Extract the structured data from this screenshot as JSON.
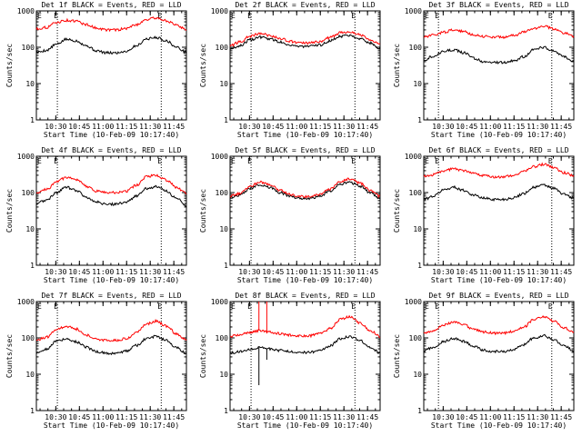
{
  "colors": {
    "events": "#000000",
    "lld": "#ff0000",
    "frame": "#000000",
    "background": "#ffffff"
  },
  "chart_data": [
    {
      "type": "line",
      "title": "Det 1f BLACK = Events, RED = LLD",
      "xlabel": "Start Time (10-Feb-09 10:17:40)",
      "ylabel": "Counts/sec",
      "yscale": "log",
      "ylim": [
        1,
        1000
      ],
      "x_ticks": [
        "10:30",
        "10:45",
        "11:00",
        "11:15",
        "11:30",
        "11:45"
      ],
      "y_ticks": [
        "1",
        "10",
        "100",
        "1000"
      ],
      "marker_x": [
        "10:31",
        "11:37"
      ],
      "marker_labels": [
        "E",
        "E"
      ],
      "series": [
        {
          "color": "#000000",
          "values": [
            72,
            82,
            120,
            165,
            150,
            110,
            80,
            70,
            70,
            78,
            110,
            170,
            185,
            150,
            100,
            72
          ]
        },
        {
          "color": "#ff0000",
          "values": [
            320,
            350,
            480,
            550,
            520,
            420,
            340,
            300,
            300,
            330,
            420,
            580,
            640,
            540,
            400,
            310
          ]
        }
      ]
    },
    {
      "type": "line",
      "title": "Det 2f BLACK = Events, RED = LLD",
      "xlabel": "Start Time (10-Feb-09 10:17:40)",
      "ylabel": "Counts/sec",
      "yscale": "log",
      "ylim": [
        1,
        1000
      ],
      "x_ticks": [
        "10:30",
        "10:45",
        "11:00",
        "11:15",
        "11:30",
        "11:45"
      ],
      "y_ticks": [
        "1",
        "10",
        "100",
        "1000"
      ],
      "marker_x": [
        "10:31",
        "11:37"
      ],
      "marker_labels": [
        "E",
        "E"
      ],
      "series": [
        {
          "color": "#000000",
          "values": [
            90,
            110,
            160,
            190,
            170,
            140,
            115,
            105,
            105,
            115,
            150,
            200,
            215,
            175,
            130,
            95
          ]
        },
        {
          "color": "#ff0000",
          "values": [
            110,
            140,
            200,
            240,
            210,
            175,
            145,
            130,
            130,
            145,
            185,
            250,
            270,
            220,
            165,
            120
          ]
        }
      ]
    },
    {
      "type": "line",
      "title": "Det 3f BLACK = Events, RED = LLD",
      "xlabel": "Start Time (10-Feb-09 10:17:40)",
      "ylabel": "Counts/sec",
      "yscale": "log",
      "ylim": [
        1,
        1000
      ],
      "x_ticks": [
        "10:30",
        "10:45",
        "11:00",
        "11:15",
        "11:30",
        "11:45"
      ],
      "y_ticks": [
        "1",
        "10",
        "100",
        "1000"
      ],
      "marker_x": [
        "10:27",
        "11:39"
      ],
      "marker_labels": [
        "E",
        "E"
      ],
      "series": [
        {
          "color": "#000000",
          "values": [
            45,
            58,
            78,
            85,
            70,
            50,
            40,
            38,
            38,
            42,
            55,
            85,
            100,
            80,
            55,
            42
          ]
        },
        {
          "color": "#ff0000",
          "values": [
            190,
            215,
            260,
            300,
            270,
            220,
            200,
            190,
            190,
            210,
            260,
            330,
            380,
            320,
            250,
            200
          ]
        }
      ]
    },
    {
      "type": "line",
      "title": "Det 4f BLACK = Events, RED = LLD",
      "xlabel": "Start Time (10-Feb-09 10:17:40)",
      "ylabel": "Counts/sec",
      "yscale": "log",
      "ylim": [
        1,
        1000
      ],
      "x_ticks": [
        "10:30",
        "10:45",
        "11:00",
        "11:15",
        "11:30",
        "11:45"
      ],
      "y_ticks": [
        "1",
        "10",
        "100",
        "1000"
      ],
      "marker_x": [
        "10:31",
        "11:37"
      ],
      "marker_labels": [
        "E",
        "E"
      ],
      "series": [
        {
          "color": "#000000",
          "values": [
            50,
            62,
            100,
            140,
            115,
            75,
            55,
            48,
            48,
            55,
            80,
            130,
            145,
            110,
            70,
            45
          ]
        },
        {
          "color": "#ff0000",
          "values": [
            100,
            120,
            200,
            260,
            220,
            150,
            110,
            100,
            100,
            110,
            160,
            270,
            300,
            220,
            140,
            95
          ]
        }
      ]
    },
    {
      "type": "line",
      "title": "Det 5f BLACK = Events, RED = LLD",
      "xlabel": "Start Time (10-Feb-09 10:17:40)",
      "ylabel": "Counts/sec",
      "yscale": "log",
      "ylim": [
        1,
        1000
      ],
      "x_ticks": [
        "10:30",
        "10:45",
        "11:00",
        "11:15",
        "11:30",
        "11:45"
      ],
      "y_ticks": [
        "1",
        "10",
        "100",
        "1000"
      ],
      "marker_x": [
        "10:31",
        "11:37"
      ],
      "marker_labels": [
        "E",
        "E"
      ],
      "series": [
        {
          "color": "#000000",
          "values": [
            72,
            85,
            130,
            165,
            140,
            100,
            78,
            70,
            70,
            80,
            110,
            170,
            190,
            150,
            100,
            70
          ]
        },
        {
          "color": "#ff0000",
          "values": [
            80,
            95,
            150,
            195,
            165,
            115,
            88,
            78,
            78,
            90,
            125,
            200,
            240,
            180,
            115,
            78
          ]
        }
      ]
    },
    {
      "type": "line",
      "title": "Det 6f BLACK = Events, RED = LLD",
      "xlabel": "Start Time (10-Feb-09 10:17:40)",
      "ylabel": "Counts/sec",
      "yscale": "log",
      "ylim": [
        1,
        1000
      ],
      "x_ticks": [
        "10:30",
        "10:45",
        "11:00",
        "11:15",
        "11:30",
        "11:45"
      ],
      "y_ticks": [
        "1",
        "10",
        "100",
        "1000"
      ],
      "marker_x": [
        "10:27",
        "11:39"
      ],
      "marker_labels": [
        "E",
        "E"
      ],
      "series": [
        {
          "color": "#000000",
          "values": [
            65,
            80,
            120,
            140,
            115,
            85,
            70,
            65,
            65,
            72,
            95,
            140,
            160,
            130,
            90,
            70
          ]
        },
        {
          "color": "#ff0000",
          "values": [
            280,
            310,
            400,
            450,
            400,
            330,
            290,
            270,
            270,
            300,
            380,
            520,
            600,
            480,
            350,
            290
          ]
        }
      ]
    },
    {
      "type": "line",
      "title": "Det 7f BLACK = Events, RED = LLD",
      "xlabel": "Start Time (10-Feb-09 10:17:40)",
      "ylabel": "Counts/sec",
      "yscale": "log",
      "ylim": [
        1,
        1000
      ],
      "x_ticks": [
        "10:30",
        "10:45",
        "11:00",
        "11:15",
        "11:30",
        "11:45"
      ],
      "y_ticks": [
        "1",
        "10",
        "100",
        "1000"
      ],
      "marker_x": [
        "10:31",
        "11:37"
      ],
      "marker_labels": [
        "E",
        "E"
      ],
      "series": [
        {
          "color": "#000000",
          "values": [
            38,
            50,
            80,
            95,
            78,
            55,
            42,
            38,
            38,
            44,
            62,
            95,
            110,
            85,
            55,
            38
          ]
        },
        {
          "color": "#ff0000",
          "values": [
            85,
            105,
            170,
            210,
            175,
            120,
            92,
            85,
            85,
            98,
            140,
            240,
            290,
            210,
            130,
            88
          ]
        }
      ]
    },
    {
      "type": "line",
      "title": "Det 8f BLACK = Events, RED = LLD",
      "xlabel": "Start Time (10-Feb-09 10:17:40)",
      "ylabel": "Counts/sec",
      "yscale": "log",
      "ylim": [
        1,
        1000
      ],
      "x_ticks": [
        "10:30",
        "10:45",
        "11:00",
        "11:15",
        "11:30",
        "11:45"
      ],
      "y_ticks": [
        "1",
        "10",
        "100",
        "1000"
      ],
      "marker_x": [
        "10:31",
        "11:37"
      ],
      "marker_labels": [
        "E",
        "E"
      ],
      "spikes": [
        {
          "x": "10:36",
          "series": 0,
          "to": 5
        },
        {
          "x": "10:36",
          "series": 1,
          "to": 1000
        },
        {
          "x": "10:41",
          "series": 1,
          "to": 1000
        },
        {
          "x": "10:41",
          "series": 0,
          "to": 25
        }
      ],
      "series": [
        {
          "color": "#000000",
          "values": [
            38,
            42,
            48,
            55,
            50,
            45,
            42,
            40,
            40,
            45,
            60,
            95,
            110,
            85,
            55,
            38
          ]
        },
        {
          "color": "#ff0000",
          "values": [
            110,
            125,
            140,
            160,
            145,
            130,
            120,
            115,
            115,
            130,
            180,
            320,
            380,
            260,
            160,
            110
          ]
        }
      ]
    },
    {
      "type": "line",
      "title": "Det 9f BLACK = Events, RED = LLD",
      "xlabel": "Start Time (10-Feb-09 10:17:40)",
      "ylabel": "Counts/sec",
      "yscale": "log",
      "ylim": [
        1,
        1000
      ],
      "x_ticks": [
        "10:30",
        "10:45",
        "11:00",
        "11:15",
        "11:30",
        "11:45"
      ],
      "y_ticks": [
        "1",
        "10",
        "100",
        "1000"
      ],
      "marker_x": [
        "10:27",
        "11:39"
      ],
      "marker_labels": [
        "E",
        "E"
      ],
      "series": [
        {
          "color": "#000000",
          "values": [
            45,
            55,
            80,
            95,
            80,
            58,
            46,
            42,
            42,
            48,
            65,
            100,
            115,
            90,
            60,
            45
          ]
        },
        {
          "color": "#ff0000",
          "values": [
            140,
            160,
            230,
            270,
            230,
            170,
            145,
            135,
            135,
            150,
            200,
            320,
            380,
            290,
            190,
            140
          ]
        }
      ]
    }
  ]
}
